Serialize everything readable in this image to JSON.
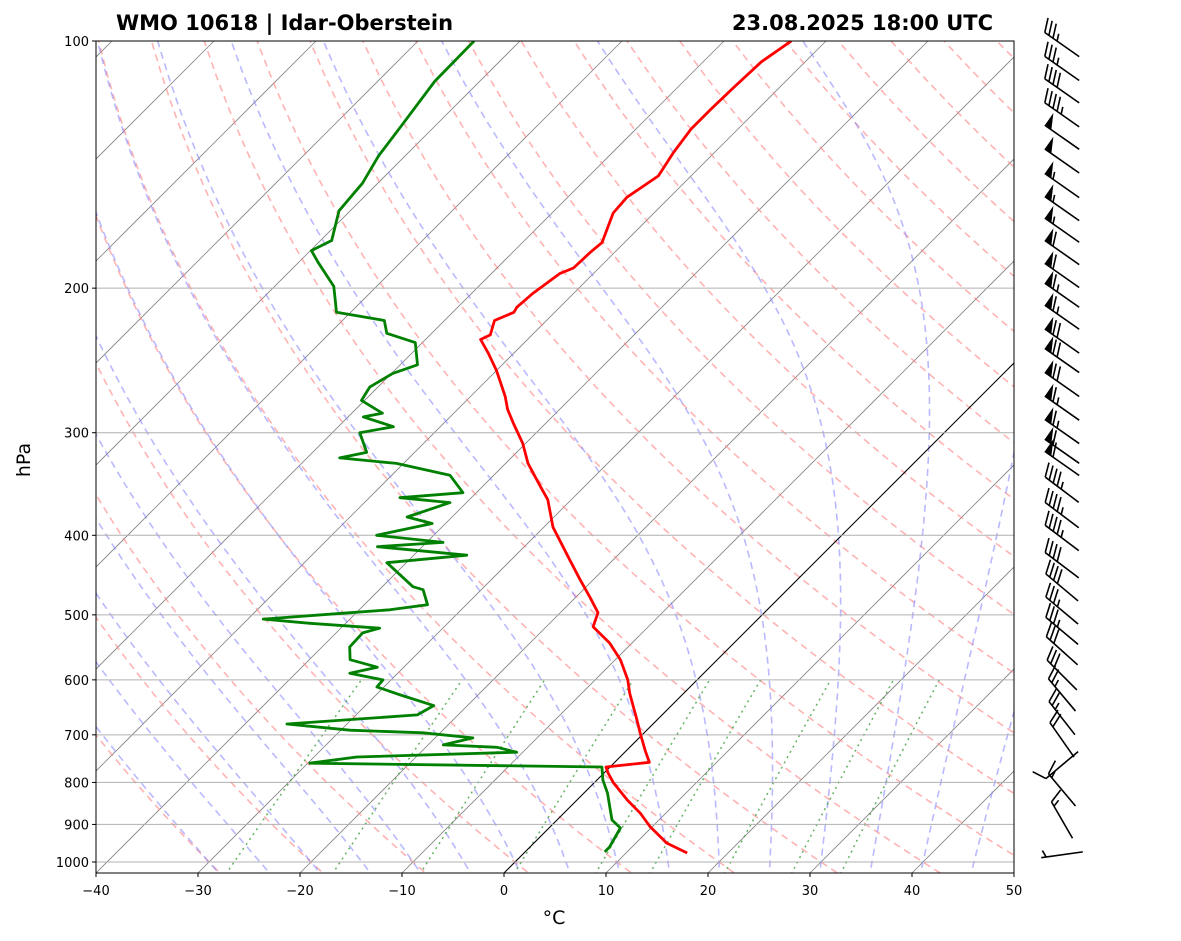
{
  "chart_data": {
    "type": "line",
    "subtype": "skew-t log-p",
    "title_left": "WMO 10618 | Idar-Oberstein",
    "title_right": "23.08.2025 18:00 UTC",
    "xlabel": "°C",
    "ylabel": "hPa",
    "xlim": [
      -40,
      50
    ],
    "ylim": [
      1031,
      100
    ],
    "xticks": [
      "−40",
      "−30",
      "−20",
      "−10",
      "0",
      "10",
      "20",
      "30",
      "40",
      "50"
    ],
    "xtick_values": [
      -40,
      -30,
      -20,
      -10,
      0,
      10,
      20,
      30,
      40,
      50
    ],
    "yticks": [
      "100",
      "200",
      "300",
      "400",
      "500",
      "600",
      "700",
      "800",
      "900",
      "1000"
    ],
    "ytick_values": [
      100,
      200,
      300,
      400,
      500,
      600,
      700,
      800,
      900,
      1000
    ],
    "grid": true,
    "colors": {
      "temperature": "#ff0000",
      "dewpoint": "#008000",
      "isotherm": "#808080",
      "dry_adiabat": "#ff8080",
      "moist_adiabat": "#8080ff",
      "mixing_ratio": "#40a040",
      "zero_isotherm": "#000000"
    },
    "series": [
      {
        "name": "Temperature",
        "unit": "°C",
        "points": [
          [
            975,
            16.0
          ],
          [
            948,
            13.0
          ],
          [
            906,
            9.8
          ],
          [
            872,
            7.5
          ],
          [
            840,
            4.9
          ],
          [
            801,
            1.9
          ],
          [
            779,
            0.4
          ],
          [
            766,
            -0.4
          ],
          [
            756,
            3.4
          ],
          [
            731,
            1.8
          ],
          [
            696,
            -0.4
          ],
          [
            671,
            -2.0
          ],
          [
            623,
            -5.3
          ],
          [
            600,
            -6.8
          ],
          [
            567,
            -9.5
          ],
          [
            541,
            -12.2
          ],
          [
            517,
            -15.4
          ],
          [
            497,
            -16.3
          ],
          [
            476,
            -18.6
          ],
          [
            453,
            -21.3
          ],
          [
            429,
            -24.2
          ],
          [
            391,
            -29.1
          ],
          [
            362,
            -32.3
          ],
          [
            349,
            -34.3
          ],
          [
            327,
            -37.8
          ],
          [
            309,
            -40.3
          ],
          [
            292,
            -43.2
          ],
          [
            281,
            -45.1
          ],
          [
            271,
            -46.6
          ],
          [
            252,
            -50.0
          ],
          [
            240,
            -52.5
          ],
          [
            231,
            -54.6
          ],
          [
            228,
            -54.1
          ],
          [
            219,
            -55.1
          ],
          [
            214,
            -54.0
          ],
          [
            211,
            -54.2
          ],
          [
            203,
            -54.0
          ],
          [
            192,
            -53.3
          ],
          [
            189,
            -52.5
          ],
          [
            181,
            -52.4
          ],
          [
            176,
            -52.2
          ],
          [
            162,
            -54.0
          ],
          [
            155,
            -54.2
          ],
          [
            146,
            -53.2
          ],
          [
            137,
            -54.0
          ],
          [
            128,
            -54.6
          ],
          [
            121,
            -54.6
          ],
          [
            114,
            -54.5
          ],
          [
            106,
            -54.3
          ],
          [
            100,
            -53.4
          ]
        ]
      },
      {
        "name": "Dewpoint",
        "unit": "°C",
        "points": [
          [
            972,
            7.8
          ],
          [
            959,
            7.8
          ],
          [
            909,
            7.0
          ],
          [
            889,
            5.4
          ],
          [
            857,
            3.9
          ],
          [
            824,
            2.3
          ],
          [
            795,
            0.6
          ],
          [
            766,
            -0.8
          ],
          [
            758,
            -29.8
          ],
          [
            745,
            -25.8
          ],
          [
            735,
            -10.6
          ],
          [
            725,
            -13.0
          ],
          [
            720,
            -18.5
          ],
          [
            706,
            -16.3
          ],
          [
            696,
            -21.7
          ],
          [
            691,
            -29.1
          ],
          [
            679,
            -35.9
          ],
          [
            662,
            -24.0
          ],
          [
            645,
            -23.3
          ],
          [
            626,
            -27.6
          ],
          [
            612,
            -30.7
          ],
          [
            600,
            -30.8
          ],
          [
            589,
            -34.7
          ],
          [
            579,
            -32.6
          ],
          [
            567,
            -36.0
          ],
          [
            547,
            -37.3
          ],
          [
            526,
            -37.4
          ],
          [
            519,
            -36.2
          ],
          [
            512,
            -43.5
          ],
          [
            506,
            -48.5
          ],
          [
            497,
            -40.6
          ],
          [
            493,
            -37.0
          ],
          [
            486,
            -33.8
          ],
          [
            466,
            -35.7
          ],
          [
            462,
            -37.0
          ],
          [
            432,
            -41.9
          ],
          [
            423,
            -34.8
          ],
          [
            413,
            -44.4
          ],
          [
            408,
            -38.4
          ],
          [
            400,
            -45.6
          ],
          [
            387,
            -41.3
          ],
          [
            380,
            -44.4
          ],
          [
            365,
            -41.6
          ],
          [
            360,
            -47.0
          ],
          [
            355,
            -41.3
          ],
          [
            338,
            -44.3
          ],
          [
            327,
            -50.7
          ],
          [
            322,
            -56.8
          ],
          [
            317,
            -54.7
          ],
          [
            300,
            -57.3
          ],
          [
            295,
            -54.6
          ],
          [
            287,
            -58.5
          ],
          [
            284,
            -57.0
          ],
          [
            274,
            -60.3
          ],
          [
            264,
            -60.8
          ],
          [
            254,
            -59.9
          ],
          [
            248,
            -58.3
          ],
          [
            233,
            -60.7
          ],
          [
            227,
            -64.4
          ],
          [
            219,
            -65.9
          ],
          [
            214,
            -71.4
          ],
          [
            199,
            -74.2
          ],
          [
            186,
            -78.1
          ],
          [
            180,
            -79.9
          ],
          [
            175,
            -78.9
          ],
          [
            161,
            -81.1
          ],
          [
            149,
            -81.5
          ],
          [
            138,
            -82.6
          ],
          [
            127,
            -83.3
          ],
          [
            112,
            -84.4
          ],
          [
            100,
            -84.5
          ]
        ]
      }
    ],
    "wind_barbs": {
      "unit": "kt",
      "levels": [
        {
          "p": 101,
          "dir": 305,
          "speed": 35
        },
        {
          "p": 108,
          "dir": 305,
          "speed": 35
        },
        {
          "p": 115,
          "dir": 305,
          "speed": 40
        },
        {
          "p": 123,
          "dir": 305,
          "speed": 45
        },
        {
          "p": 131,
          "dir": 305,
          "speed": 50
        },
        {
          "p": 140,
          "dir": 305,
          "speed": 50
        },
        {
          "p": 150,
          "dir": 305,
          "speed": 55
        },
        {
          "p": 160,
          "dir": 305,
          "speed": 55
        },
        {
          "p": 170,
          "dir": 305,
          "speed": 55
        },
        {
          "p": 181,
          "dir": 305,
          "speed": 60
        },
        {
          "p": 193,
          "dir": 305,
          "speed": 60
        },
        {
          "p": 204,
          "dir": 305,
          "speed": 65
        },
        {
          "p": 217,
          "dir": 305,
          "speed": 65
        },
        {
          "p": 232,
          "dir": 305,
          "speed": 70
        },
        {
          "p": 245,
          "dir": 305,
          "speed": 70
        },
        {
          "p": 262,
          "dir": 305,
          "speed": 70
        },
        {
          "p": 280,
          "dir": 305,
          "speed": 65
        },
        {
          "p": 299,
          "dir": 305,
          "speed": 65
        },
        {
          "p": 316,
          "dir": 305,
          "speed": 60
        },
        {
          "p": 327,
          "dir": 305,
          "speed": 60
        },
        {
          "p": 352,
          "dir": 307,
          "speed": 45
        },
        {
          "p": 378,
          "dir": 307,
          "speed": 45
        },
        {
          "p": 403,
          "dir": 307,
          "speed": 45
        },
        {
          "p": 435,
          "dir": 307,
          "speed": 40
        },
        {
          "p": 463,
          "dir": 310,
          "speed": 40
        },
        {
          "p": 494,
          "dir": 310,
          "speed": 35
        },
        {
          "p": 523,
          "dir": 310,
          "speed": 35
        },
        {
          "p": 553,
          "dir": 312,
          "speed": 30
        },
        {
          "p": 592,
          "dir": 315,
          "speed": 30
        },
        {
          "p": 626,
          "dir": 320,
          "speed": 25
        },
        {
          "p": 668,
          "dir": 322,
          "speed": 25
        },
        {
          "p": 710,
          "dir": 325,
          "speed": 20
        },
        {
          "p": 762,
          "dir": 230,
          "speed": 10
        },
        {
          "p": 817,
          "dir": 320,
          "speed": 15
        },
        {
          "p": 889,
          "dir": 330,
          "speed": 15
        },
        {
          "p": 980,
          "dir": 262,
          "speed": 5
        }
      ]
    },
    "background_lines": {
      "isotherms_step": 10,
      "dry_adiabats_theta0_range": [
        -30,
        200,
        10
      ],
      "moist_adiabats_t0_range": [
        -30,
        45,
        5
      ],
      "mixing_ratios_gkg": [
        0.4,
        1,
        2,
        4,
        7,
        10,
        16,
        24,
        32
      ]
    }
  }
}
